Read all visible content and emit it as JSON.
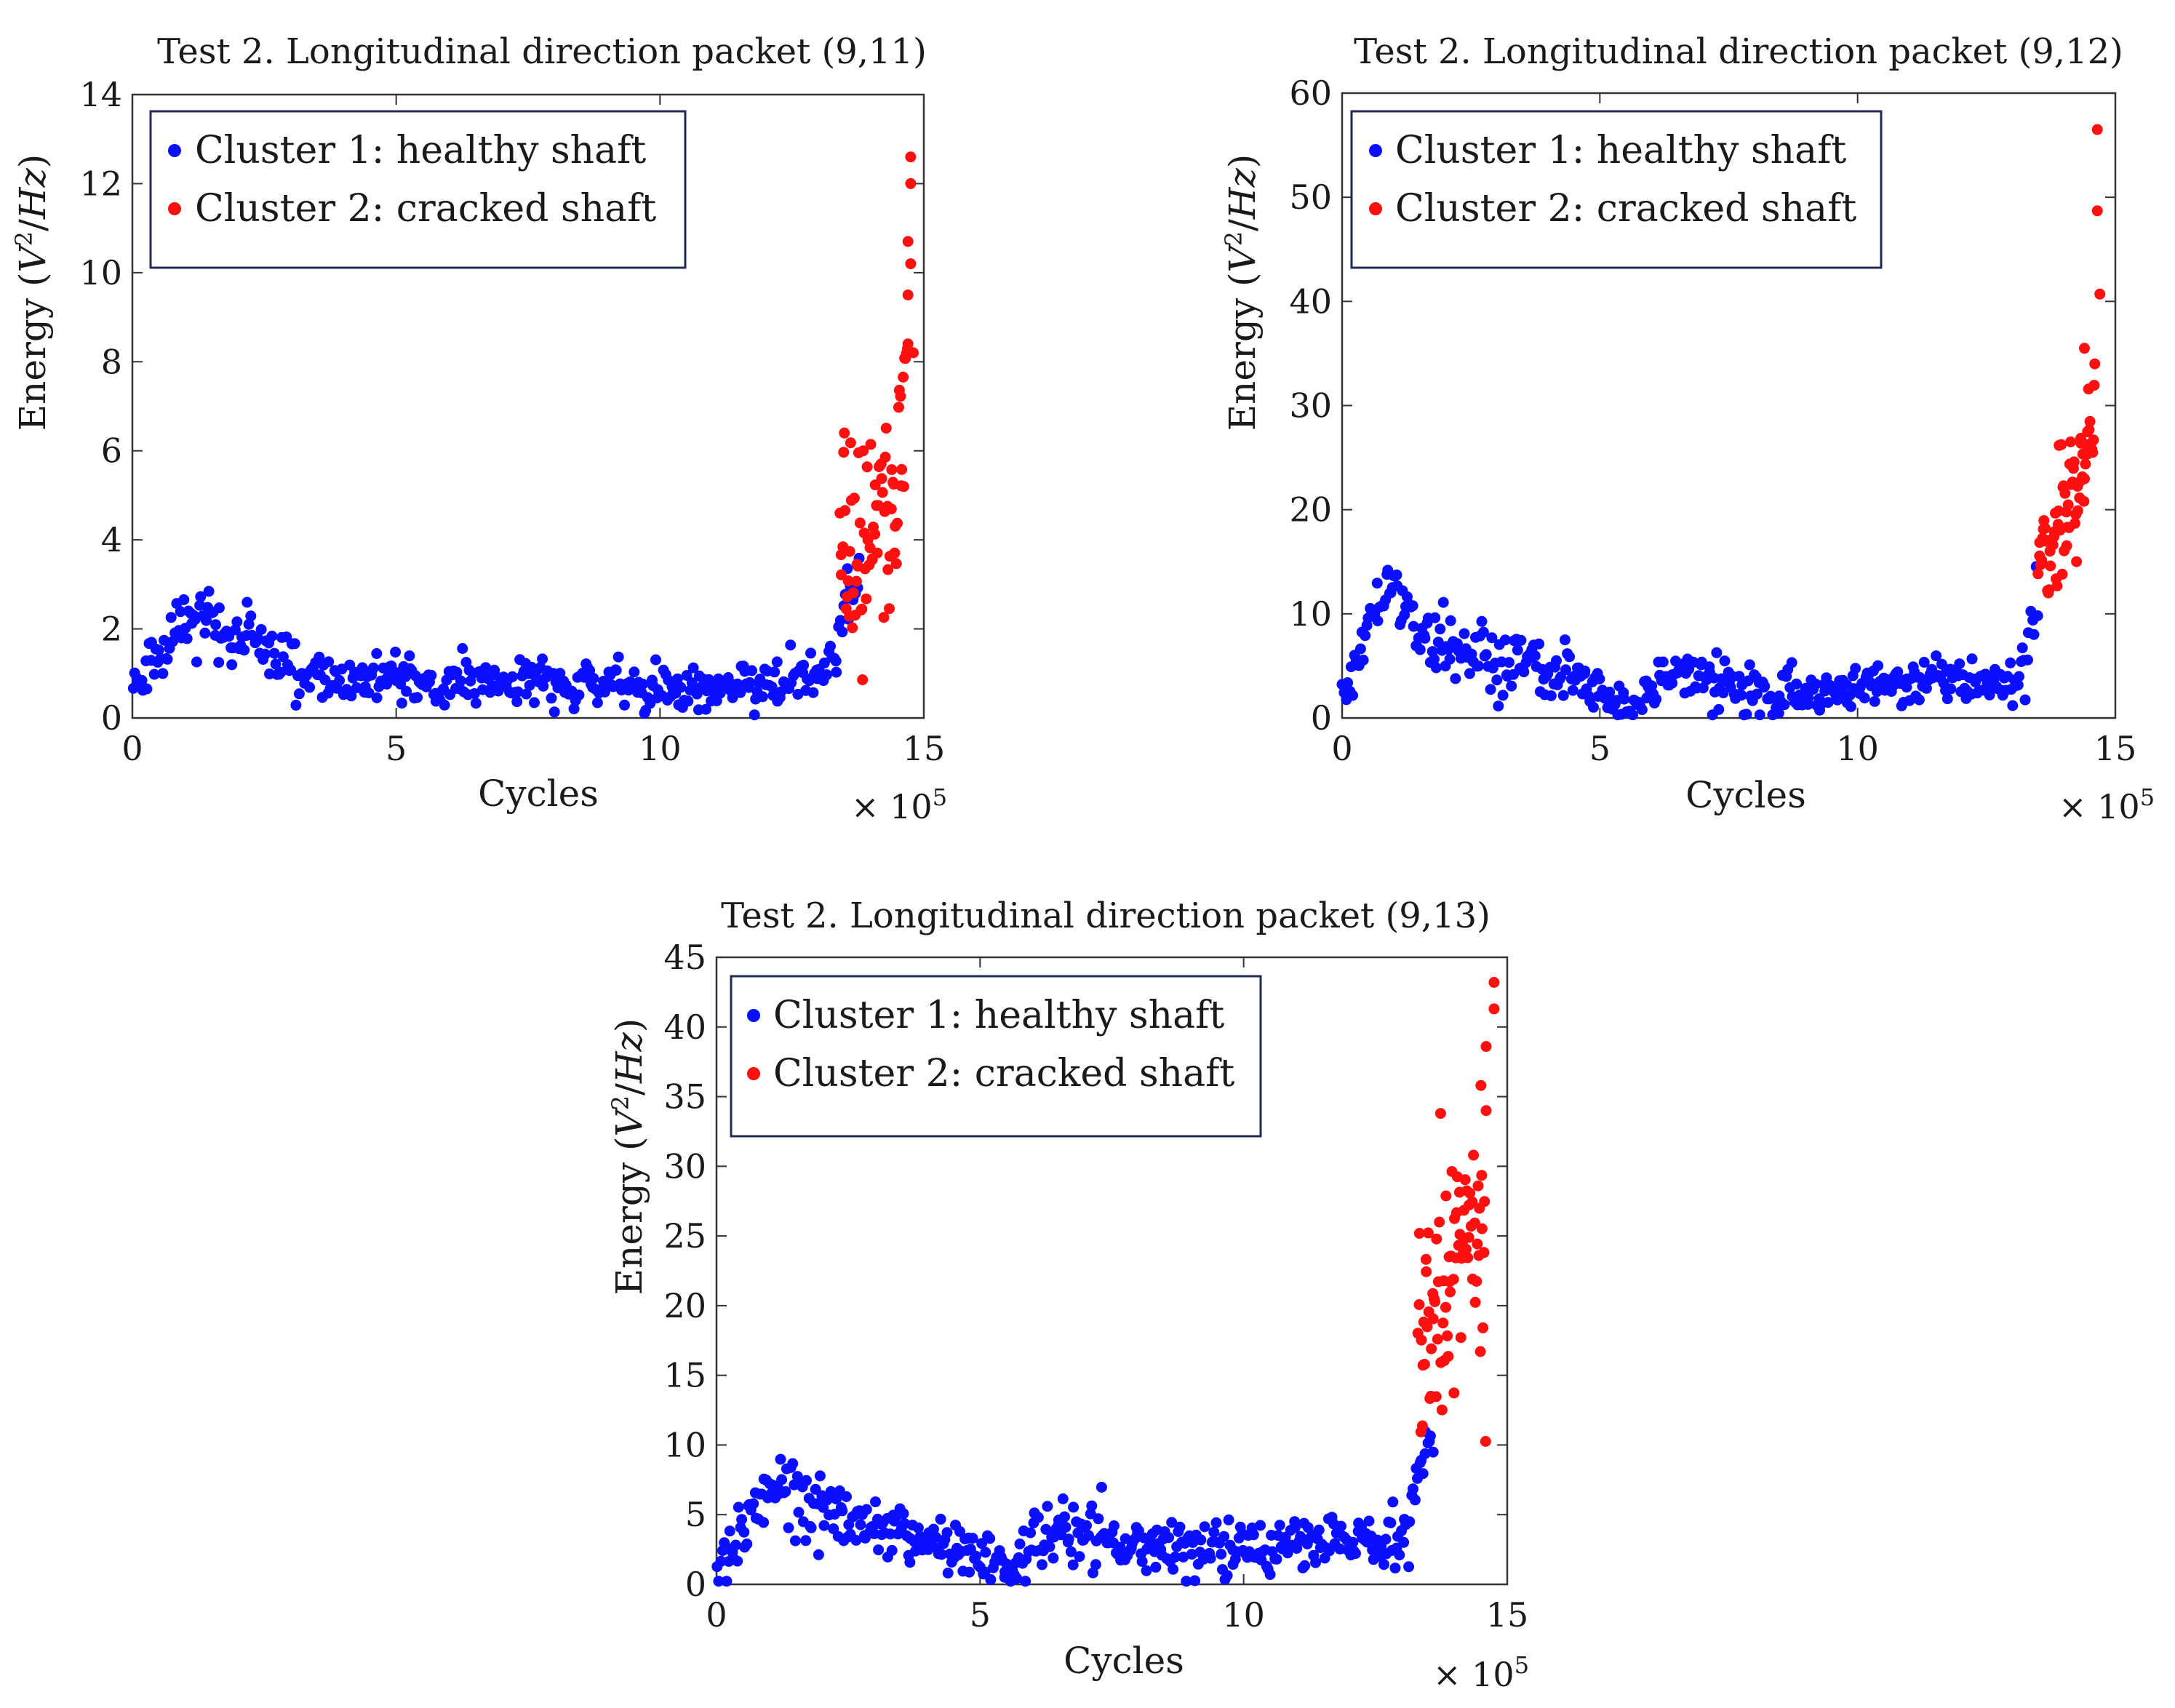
{
  "colors": {
    "cluster1": "#0a10ff",
    "cluster2": "#ff1010",
    "axis": "#333333",
    "legend_border": "#1f2a55"
  },
  "chart_data": [
    {
      "type": "scatter",
      "title": "Test 2. Longitudinal direction packet (9,11)",
      "xlabel": "Cycles",
      "ylabel_prefix": "Energy (",
      "ylabel_var1": "V",
      "ylabel_sup": "2",
      "ylabel_slash": "/",
      "ylabel_var2": "Hz",
      "ylabel_suffix": ")",
      "x_multiplier_label": "× 10",
      "x_multiplier_exp": "5",
      "xlim": [
        0,
        15
      ],
      "ylim": [
        0,
        14
      ],
      "xticks": [
        0,
        5,
        10,
        15
      ],
      "yticks": [
        0,
        2,
        4,
        6,
        8,
        10,
        12,
        14
      ],
      "legend": [
        "Cluster 1: healthy shaft",
        "Cluster 2: cracked shaft"
      ],
      "legend_position": "top-left",
      "series": [
        {
          "name": "Cluster 1: healthy shaft",
          "trend": [
            [
              0,
              0.5
            ],
            [
              0.3,
              1.0
            ],
            [
              0.8,
              1.8
            ],
            [
              1.2,
              2.3
            ],
            [
              1.6,
              2.0
            ],
            [
              2.2,
              1.8
            ],
            [
              2.8,
              1.4
            ],
            [
              3.3,
              1.0
            ],
            [
              4,
              0.85
            ],
            [
              5,
              0.8
            ],
            [
              5.8,
              0.6
            ],
            [
              6.5,
              0.9
            ],
            [
              7.5,
              0.9
            ],
            [
              9,
              0.75
            ],
            [
              10,
              0.7
            ],
            [
              11,
              0.7
            ],
            [
              12,
              0.8
            ],
            [
              13,
              0.9
            ],
            [
              13.3,
              1.4
            ],
            [
              13.5,
              2.6
            ],
            [
              13.8,
              3.0
            ]
          ],
          "spread": 0.35,
          "count": 420
        },
        {
          "name": "Cluster 2: cracked shaft",
          "trend": [
            [
              13.4,
              3.6
            ],
            [
              13.8,
              3.9
            ],
            [
              14.2,
              4.6
            ],
            [
              14.5,
              5.5
            ],
            [
              14.7,
              7.5
            ]
          ],
          "spread": 1.2,
          "count": 75,
          "extra_points": [
            [
              14.75,
              12.6
            ],
            [
              14.75,
              12.0
            ],
            [
              14.7,
              10.7
            ],
            [
              14.75,
              10.2
            ],
            [
              14.7,
              9.5
            ],
            [
              14.7,
              8.4
            ],
            [
              14.8,
              8.2
            ]
          ]
        }
      ]
    },
    {
      "type": "scatter",
      "title": "Test 2. Longitudinal direction packet (9,12)",
      "xlabel": "Cycles",
      "ylabel_prefix": "Energy (",
      "ylabel_var1": "V",
      "ylabel_sup": "2",
      "ylabel_slash": "/",
      "ylabel_var2": "Hz",
      "ylabel_suffix": ")",
      "x_multiplier_label": "× 10",
      "x_multiplier_exp": "5",
      "xlim": [
        0,
        15
      ],
      "ylim": [
        0,
        60
      ],
      "xticks": [
        0,
        5,
        10,
        15
      ],
      "yticks": [
        0,
        10,
        20,
        30,
        40,
        50,
        60
      ],
      "legend": [
        "Cluster 1: healthy shaft",
        "Cluster 2: cracked shaft"
      ],
      "legend_position": "top-left",
      "series": [
        {
          "name": "Cluster 1: healthy shaft",
          "trend": [
            [
              0,
              2
            ],
            [
              0.3,
              5
            ],
            [
              0.6,
              10
            ],
            [
              1.0,
              11.5
            ],
            [
              1.4,
              9
            ],
            [
              1.8,
              7
            ],
            [
              2.5,
              6.5
            ],
            [
              3.5,
              5
            ],
            [
              4.5,
              4
            ],
            [
              5.2,
              2
            ],
            [
              5.6,
              0.8
            ],
            [
              6.0,
              3
            ],
            [
              6.5,
              4.5
            ],
            [
              7.2,
              3.5
            ],
            [
              8,
              2.5
            ],
            [
              9,
              2.2
            ],
            [
              10,
              2.8
            ],
            [
              11,
              3.5
            ],
            [
              12,
              3.8
            ],
            [
              12.8,
              3
            ],
            [
              13.1,
              3.5
            ],
            [
              13.3,
              7
            ],
            [
              13.5,
              12
            ]
          ],
          "spread": 1.5,
          "count": 430
        },
        {
          "name": "Cluster 2: cracked shaft",
          "trend": [
            [
              13.5,
              16
            ],
            [
              13.8,
              18
            ],
            [
              14.1,
              20
            ],
            [
              14.4,
              25
            ],
            [
              14.6,
              32
            ]
          ],
          "spread": 3.0,
          "count": 70,
          "extra_points": [
            [
              14.65,
              56.5
            ],
            [
              14.65,
              48.7
            ],
            [
              14.7,
              40.7
            ],
            [
              14.4,
              35.5
            ],
            [
              14.6,
              34
            ]
          ]
        }
      ]
    },
    {
      "type": "scatter",
      "title": "Test 2. Longitudinal direction packet (9,13)",
      "xlabel": "Cycles",
      "ylabel_prefix": "Energy (",
      "ylabel_var1": "V",
      "ylabel_sup": "2",
      "ylabel_slash": "/",
      "ylabel_var2": "Hz",
      "ylabel_suffix": ")",
      "x_multiplier_label": "× 10",
      "x_multiplier_exp": "5",
      "xlim": [
        0,
        15
      ],
      "ylim": [
        0,
        45
      ],
      "xticks": [
        0,
        5,
        10,
        15
      ],
      "yticks": [
        0,
        5,
        10,
        15,
        20,
        25,
        30,
        35,
        40,
        45
      ],
      "legend": [
        "Cluster 1: healthy shaft",
        "Cluster 2: cracked shaft"
      ],
      "legend_position": "top-left",
      "series": [
        {
          "name": "Cluster 1: healthy shaft",
          "trend": [
            [
              0,
              1.5
            ],
            [
              0.3,
              3
            ],
            [
              0.8,
              6
            ],
            [
              1.2,
              7.5
            ],
            [
              1.6,
              6
            ],
            [
              2.2,
              5
            ],
            [
              2.8,
              4.5
            ],
            [
              3.5,
              3.5
            ],
            [
              4.5,
              2.5
            ],
            [
              5.2,
              1.8
            ],
            [
              5.6,
              1
            ],
            [
              6.0,
              2.5
            ],
            [
              6.5,
              3.5
            ],
            [
              7.5,
              3
            ],
            [
              9,
              2.5
            ],
            [
              10,
              2.5
            ],
            [
              11,
              3
            ],
            [
              12,
              3
            ],
            [
              12.8,
              2.8
            ],
            [
              13.1,
              4
            ],
            [
              13.3,
              8
            ],
            [
              13.6,
              11
            ]
          ],
          "spread": 1.3,
          "count": 440
        },
        {
          "name": "Cluster 2: cracked shaft",
          "trend": [
            [
              13.3,
              17
            ],
            [
              13.7,
              20
            ],
            [
              14.0,
              23
            ],
            [
              14.3,
              25
            ],
            [
              14.6,
              22
            ]
          ],
          "spread": 5.0,
          "count": 80,
          "extra_points": [
            [
              14.75,
              43.2
            ],
            [
              14.75,
              41.3
            ],
            [
              14.6,
              38.6
            ],
            [
              14.5,
              35.8
            ],
            [
              14.6,
              34
            ]
          ]
        }
      ]
    }
  ]
}
